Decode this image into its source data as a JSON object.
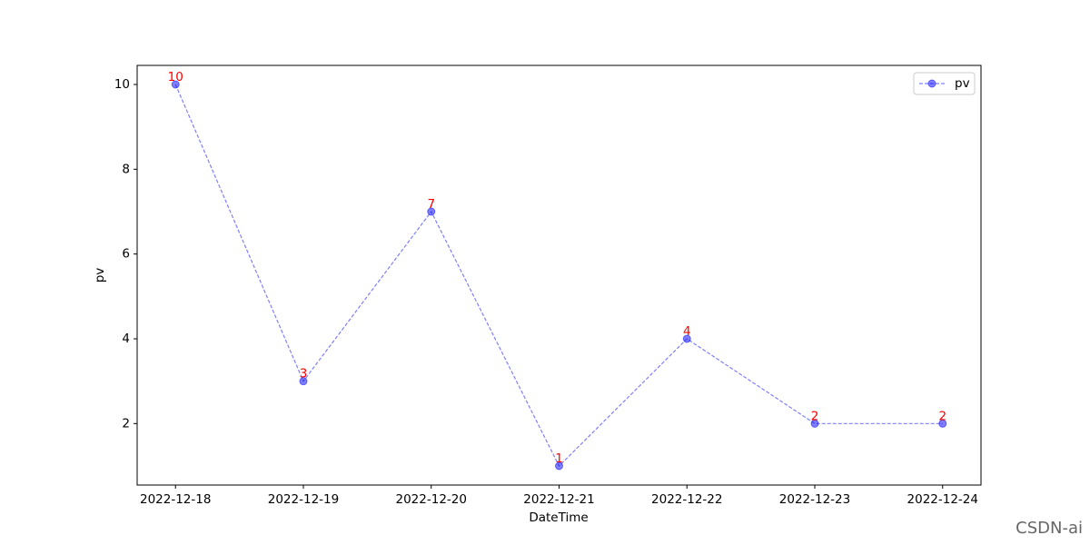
{
  "chart_data": {
    "type": "line",
    "x_label": "DateTime",
    "y_label": "pv",
    "categories": [
      "2022-12-18",
      "2022-12-19",
      "2022-12-20",
      "2022-12-21",
      "2022-12-22",
      "2022-12-23",
      "2022-12-24"
    ],
    "series": [
      {
        "name": "pv",
        "color": "#0000ff",
        "values": [
          10,
          3,
          7,
          1,
          4,
          2,
          2
        ]
      }
    ],
    "label_color": "#ff0000",
    "ylim": [
      0.55,
      10.45
    ],
    "yticks": [
      2,
      4,
      6,
      8,
      10
    ],
    "grid": false,
    "legend": "upper right",
    "watermark": "CSDN-ai"
  }
}
